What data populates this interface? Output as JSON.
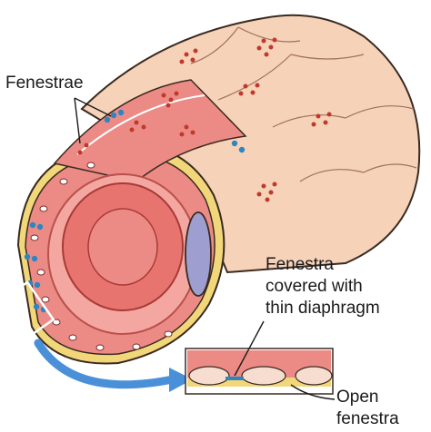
{
  "figure": {
    "subject": "fenestrated-capillary",
    "labels": {
      "fenestrae": "Fenestrae",
      "diaphragm_line1": "Fenestra",
      "diaphragm_line2": "covered with",
      "diaphragm_line3": "thin diaphragm",
      "open_line1": "Open",
      "open_line2": "fenestra"
    },
    "colors": {
      "outer_tube": "#f6d2b8",
      "outer_outline": "#3a2a20",
      "basal_lamina": "#f2d77a",
      "endothelium": "#ec8b86",
      "endothelium_dark": "#d9534f",
      "lumen": "#f4a7a0",
      "red_cell": "#e7746f",
      "nucleus": "#9e9fd0",
      "fenestra_dot": "#c0392b",
      "diaphragm_dot": "#2e86c1",
      "arrow": "#4a90d9"
    }
  }
}
